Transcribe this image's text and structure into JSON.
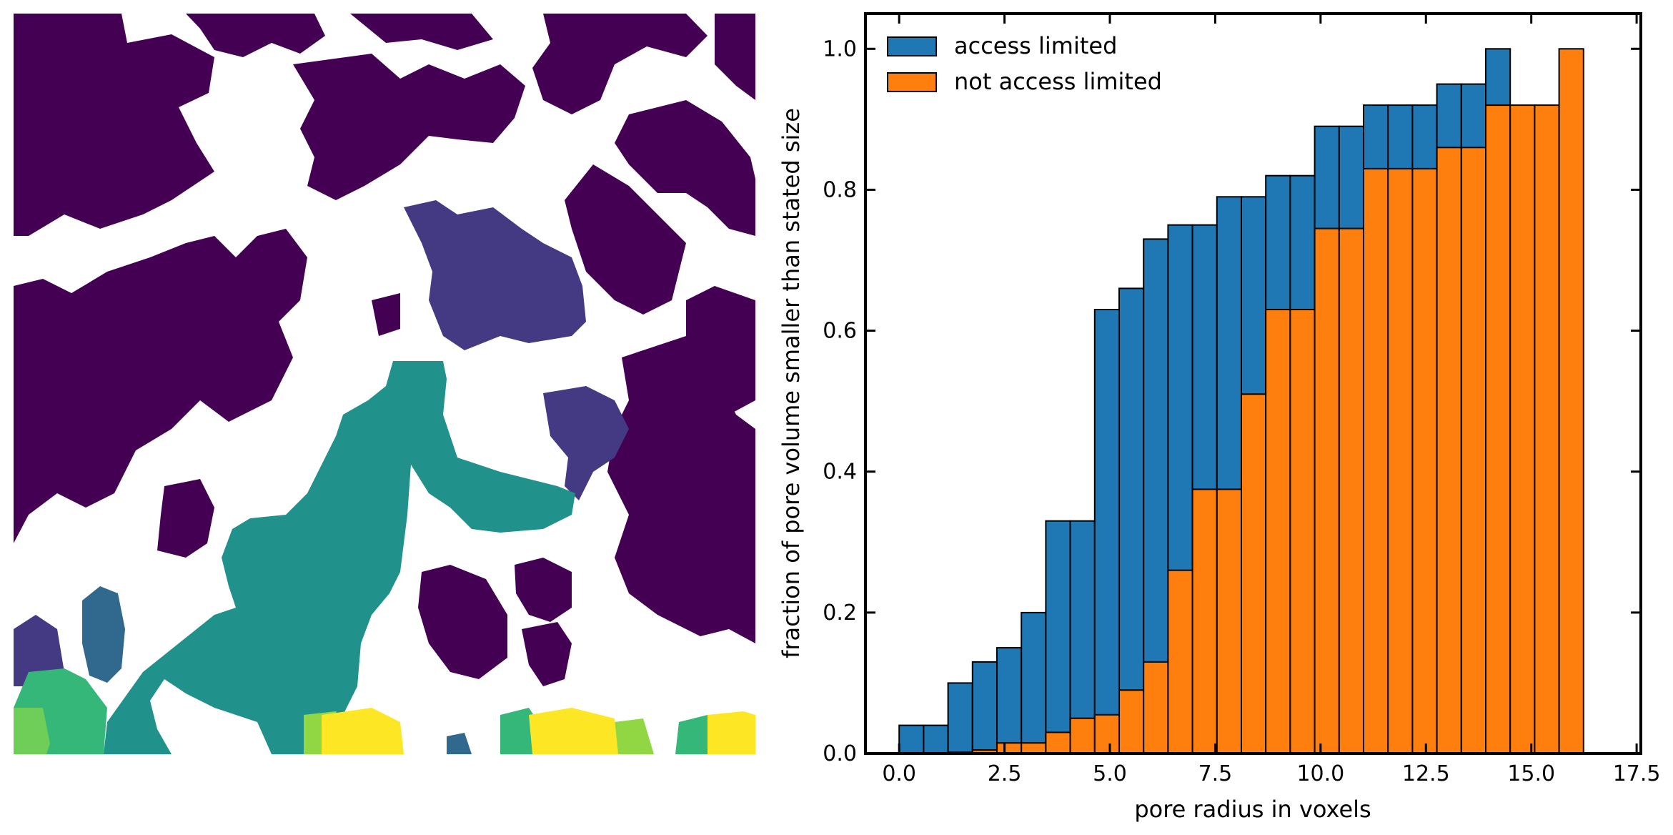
{
  "chart_data": [
    {
      "type": "image",
      "colormap": "viridis",
      "description_colors": [
        "#440154",
        "#443983",
        "#31688e",
        "#21918c",
        "#35b779",
        "#90d743",
        "#fde725"
      ]
    },
    {
      "type": "bar",
      "xlabel": "pore radius in voxels",
      "ylabel": "fraction of pore volume smaller than stated size",
      "xlim": [
        -0.8,
        17.6
      ],
      "ylim": [
        0.0,
        1.05
      ],
      "xticks": [
        0.0,
        2.5,
        5.0,
        7.5,
        10.0,
        12.5,
        15.0,
        17.5
      ],
      "xtick_labels": [
        "0.0",
        "2.5",
        "5.0",
        "7.5",
        "10.0",
        "12.5",
        "15.0",
        "17.5"
      ],
      "yticks": [
        0.0,
        0.2,
        0.4,
        0.6,
        0.8,
        1.0
      ],
      "ytick_labels": [
        "0.0",
        "0.2",
        "0.4",
        "0.6",
        "0.8",
        "1.0"
      ],
      "legend_position": "top-left",
      "bin_width": 0.58,
      "x": [
        0.0,
        0.58,
        1.16,
        1.74,
        2.32,
        2.9,
        3.48,
        4.06,
        4.64,
        5.22,
        5.8,
        6.38,
        6.96,
        7.54,
        8.12,
        8.7,
        9.28,
        9.86,
        10.44,
        11.02,
        11.6,
        12.18,
        12.76,
        13.34,
        13.92,
        14.5,
        15.08,
        15.66,
        16.24
      ],
      "series": [
        {
          "name": "access limited",
          "color": "#1f77b4",
          "values": [
            0.04,
            0.04,
            0.1,
            0.13,
            0.15,
            0.2,
            0.33,
            0.33,
            0.63,
            0.66,
            0.73,
            0.75,
            0.75,
            0.79,
            0.79,
            0.82,
            0.82,
            0.89,
            0.89,
            0.92,
            0.92,
            0.92,
            0.95,
            0.95,
            1.0,
            null,
            null,
            null,
            null
          ]
        },
        {
          "name": "not access limited",
          "color": "#ff7f0e",
          "values": [
            0.0,
            0.0,
            0.002,
            0.005,
            0.015,
            0.015,
            0.03,
            0.05,
            0.055,
            0.09,
            0.13,
            0.26,
            0.375,
            0.375,
            0.51,
            0.63,
            0.63,
            0.745,
            0.745,
            0.83,
            0.83,
            0.83,
            0.86,
            0.86,
            0.92,
            0.92,
            0.92,
            1.0,
            null
          ]
        }
      ]
    }
  ]
}
